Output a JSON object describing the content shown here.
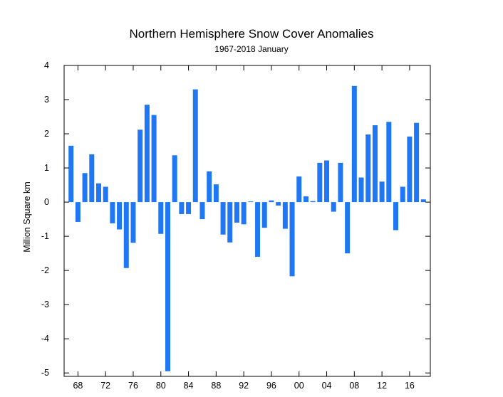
{
  "chart_data": {
    "type": "bar",
    "title": "Northern Hemisphere Snow Cover Anomalies",
    "subtitle": "1967-2018 January",
    "xlabel": "",
    "ylabel": "Million Square km",
    "ylim": [
      -5.1,
      4.0
    ],
    "xlim": [
      1966,
      2019
    ],
    "y_ticks": [
      4,
      3,
      2,
      1,
      0,
      -1,
      -2,
      -3,
      -4,
      -5
    ],
    "y_tick_labels": [
      "4",
      "3",
      "2",
      "1",
      "0",
      "-1",
      "-2",
      "-3",
      "-4",
      "-5"
    ],
    "x_ticks": [
      1968,
      1972,
      1976,
      1980,
      1984,
      1988,
      1992,
      1996,
      2000,
      2004,
      2008,
      2012,
      2016
    ],
    "x_tick_labels": [
      "68",
      "72",
      "76",
      "80",
      "84",
      "88",
      "92",
      "96",
      "00",
      "04",
      "08",
      "12",
      "16"
    ],
    "bar_color": "#1f77f4",
    "grid": false,
    "x": [
      1967,
      1968,
      1969,
      1970,
      1971,
      1972,
      1973,
      1974,
      1975,
      1976,
      1977,
      1978,
      1979,
      1980,
      1981,
      1982,
      1983,
      1984,
      1985,
      1986,
      1987,
      1988,
      1989,
      1990,
      1991,
      1992,
      1993,
      1994,
      1995,
      1996,
      1997,
      1998,
      1999,
      2000,
      2001,
      2002,
      2003,
      2004,
      2005,
      2006,
      2007,
      2008,
      2009,
      2010,
      2011,
      2012,
      2013,
      2014,
      2015,
      2016,
      2017,
      2018
    ],
    "values": [
      1.65,
      -0.58,
      0.85,
      1.4,
      0.55,
      0.45,
      -0.62,
      -0.8,
      -1.93,
      -1.19,
      2.12,
      2.85,
      2.55,
      -0.93,
      -4.95,
      1.37,
      -0.35,
      -0.35,
      3.3,
      -0.5,
      0.9,
      0.52,
      -0.95,
      -1.18,
      -0.6,
      -0.65,
      0.02,
      -1.6,
      -0.75,
      0.05,
      -0.1,
      -0.78,
      -2.17,
      0.75,
      0.17,
      0.03,
      1.15,
      1.22,
      -0.28,
      1.15,
      -1.5,
      3.4,
      0.72,
      1.98,
      2.25,
      0.6,
      2.35,
      -0.82,
      0.45,
      1.92,
      2.32,
      0.08
    ]
  }
}
